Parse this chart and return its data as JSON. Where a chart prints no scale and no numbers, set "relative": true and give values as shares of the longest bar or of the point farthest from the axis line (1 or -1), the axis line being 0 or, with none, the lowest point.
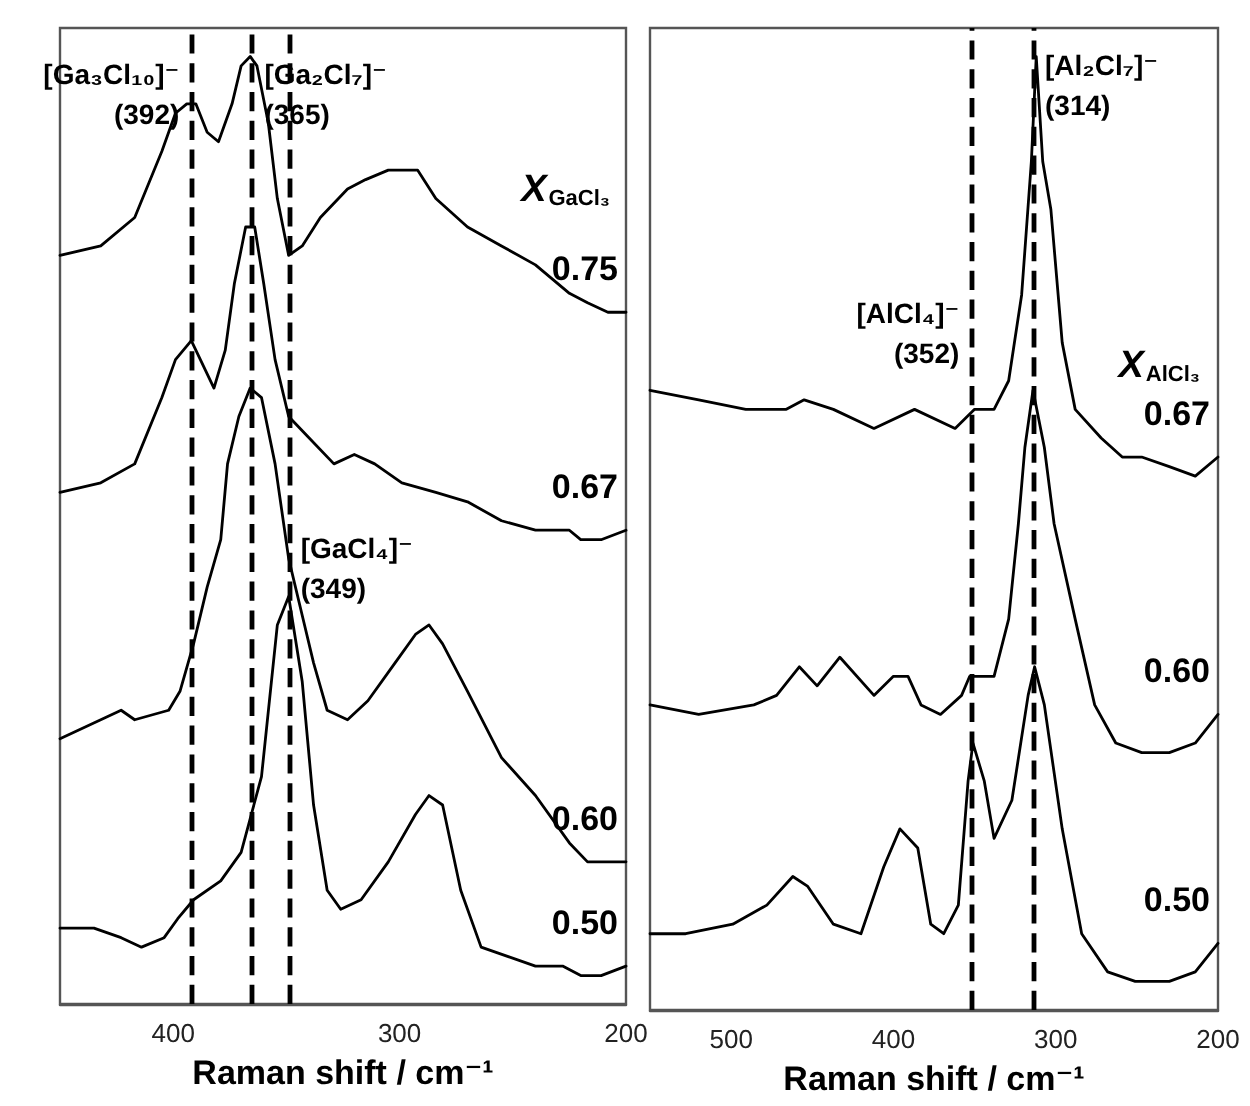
{
  "chart_data": [
    {
      "type": "line",
      "relative": true,
      "xlabel": "Raman shift / cm⁻¹",
      "legend_title": "X$_{GaCl₃}$",
      "xlim": [
        450,
        200
      ],
      "xticks": [
        400,
        300,
        200
      ],
      "series": [
        {
          "name": "0.75",
          "color": "#000000",
          "x": [
            450,
            432,
            417,
            405,
            399,
            394,
            390,
            385,
            380,
            374,
            370,
            366,
            363,
            358,
            354,
            349,
            343,
            335,
            323,
            315,
            305,
            296,
            292,
            284,
            270,
            255,
            240,
            225,
            217,
            208,
            200
          ],
          "values": [
            0.79,
            0.8,
            0.83,
            0.9,
            0.94,
            0.95,
            0.95,
            0.92,
            0.91,
            0.95,
            0.99,
            1.0,
            0.99,
            0.93,
            0.85,
            0.79,
            0.8,
            0.83,
            0.86,
            0.87,
            0.88,
            0.88,
            0.88,
            0.85,
            0.82,
            0.8,
            0.78,
            0.75,
            0.74,
            0.73,
            0.73
          ]
        },
        {
          "name": "0.67",
          "color": "#000000",
          "x": [
            450,
            432,
            417,
            405,
            399,
            392,
            388,
            382,
            377,
            373,
            368,
            364,
            360,
            355,
            349,
            341,
            329,
            320,
            311,
            299,
            284,
            270,
            255,
            240,
            225,
            220,
            211,
            200
          ],
          "values": [
            0.54,
            0.55,
            0.57,
            0.64,
            0.68,
            0.7,
            0.68,
            0.65,
            0.69,
            0.76,
            0.82,
            0.82,
            0.76,
            0.68,
            0.62,
            0.6,
            0.57,
            0.58,
            0.57,
            0.55,
            0.54,
            0.53,
            0.51,
            0.5,
            0.5,
            0.49,
            0.49,
            0.5
          ]
        },
        {
          "name": "0.60",
          "color": "#000000",
          "x": [
            450,
            432,
            423,
            417,
            402,
            397,
            391,
            385,
            379,
            376,
            371,
            366,
            361,
            355,
            349,
            343,
            338,
            332,
            323,
            314,
            302,
            293,
            287,
            281,
            270,
            255,
            240,
            225,
            217,
            208,
            200
          ],
          "values": [
            0.28,
            0.3,
            0.31,
            0.3,
            0.31,
            0.33,
            0.38,
            0.44,
            0.49,
            0.57,
            0.62,
            0.65,
            0.64,
            0.57,
            0.47,
            0.41,
            0.36,
            0.31,
            0.3,
            0.32,
            0.36,
            0.39,
            0.4,
            0.38,
            0.33,
            0.26,
            0.22,
            0.17,
            0.15,
            0.15,
            0.15
          ]
        },
        {
          "name": "0.50",
          "color": "#000000",
          "x": [
            450,
            435,
            423,
            414,
            404,
            398,
            391,
            379,
            370,
            361,
            354,
            349,
            343,
            338,
            332,
            326,
            317,
            305,
            293,
            287,
            281,
            273,
            264,
            252,
            240,
            228,
            220,
            211,
            200
          ],
          "values": [
            0.08,
            0.08,
            0.07,
            0.06,
            0.07,
            0.09,
            0.11,
            0.13,
            0.16,
            0.24,
            0.4,
            0.43,
            0.34,
            0.21,
            0.12,
            0.1,
            0.11,
            0.15,
            0.2,
            0.22,
            0.21,
            0.12,
            0.06,
            0.05,
            0.04,
            0.04,
            0.03,
            0.03,
            0.04
          ]
        }
      ],
      "ref_lines": [
        {
          "axis": "x",
          "value": 392,
          "line_style": "dashed",
          "color": "#000000",
          "label": "[Ga₃Cl₁₀]⁻ (392)"
        },
        {
          "axis": "x",
          "value": 365,
          "line_style": "dashed",
          "color": "#000000",
          "label": "[Ga₂Cl₇]⁻ (365)"
        },
        {
          "axis": "x",
          "value": 349,
          "line_style": "dashed",
          "color": "#000000",
          "label": "[GaCl₄]⁻ (349)"
        }
      ]
    },
    {
      "type": "line",
      "relative": true,
      "xlabel": "Raman shift / cm⁻¹",
      "legend_title": "X$_{AlCl₃}$",
      "xlim": [
        550,
        200
      ],
      "xticks": [
        500,
        400,
        300,
        200
      ],
      "series": [
        {
          "name": "0.67",
          "color": "#000000",
          "x": [
            550,
            520,
            491,
            466,
            455,
            437,
            412,
            387,
            362,
            350,
            338,
            329,
            321,
            315,
            312,
            308,
            303,
            296,
            288,
            272,
            259,
            247,
            230,
            214,
            200
          ],
          "values": [
            0.65,
            0.64,
            0.63,
            0.63,
            0.64,
            0.63,
            0.61,
            0.63,
            0.61,
            0.63,
            0.63,
            0.66,
            0.75,
            0.89,
            1.0,
            0.89,
            0.84,
            0.7,
            0.63,
            0.6,
            0.58,
            0.58,
            0.57,
            0.56,
            0.58
          ]
        },
        {
          "name": "0.60",
          "color": "#000000",
          "x": [
            550,
            520,
            486,
            472,
            458,
            447,
            433,
            412,
            400,
            391,
            383,
            371,
            358,
            353,
            350,
            338,
            329,
            323,
            319,
            314,
            307,
            301,
            288,
            276,
            263,
            247,
            230,
            214,
            200
          ],
          "values": [
            0.32,
            0.31,
            0.32,
            0.33,
            0.36,
            0.34,
            0.37,
            0.33,
            0.35,
            0.35,
            0.32,
            0.31,
            0.33,
            0.35,
            0.35,
            0.35,
            0.41,
            0.51,
            0.59,
            0.65,
            0.59,
            0.51,
            0.41,
            0.32,
            0.28,
            0.27,
            0.27,
            0.28,
            0.31
          ]
        },
        {
          "name": "0.50",
          "color": "#000000",
          "x": [
            550,
            528,
            499,
            478,
            462,
            453,
            437,
            420,
            406,
            396,
            385,
            377,
            369,
            360,
            354,
            351,
            344,
            338,
            327,
            317,
            313,
            307,
            296,
            284,
            268,
            251,
            230,
            214,
            200
          ],
          "values": [
            0.08,
            0.08,
            0.09,
            0.11,
            0.14,
            0.13,
            0.09,
            0.08,
            0.15,
            0.19,
            0.17,
            0.09,
            0.08,
            0.11,
            0.24,
            0.28,
            0.24,
            0.18,
            0.22,
            0.33,
            0.36,
            0.32,
            0.19,
            0.08,
            0.04,
            0.03,
            0.03,
            0.04,
            0.07
          ]
        }
      ],
      "ref_lines": [
        {
          "axis": "x",
          "value": 352,
          "line_style": "dashed",
          "color": "#000000",
          "label": "[AlCl₄]⁻ (352)"
        },
        {
          "axis": "x",
          "value": 314,
          "line_style": "dashed",
          "color": "#000000",
          "label": "[Al₂Cl₇]⁻ (314)"
        }
      ]
    }
  ]
}
